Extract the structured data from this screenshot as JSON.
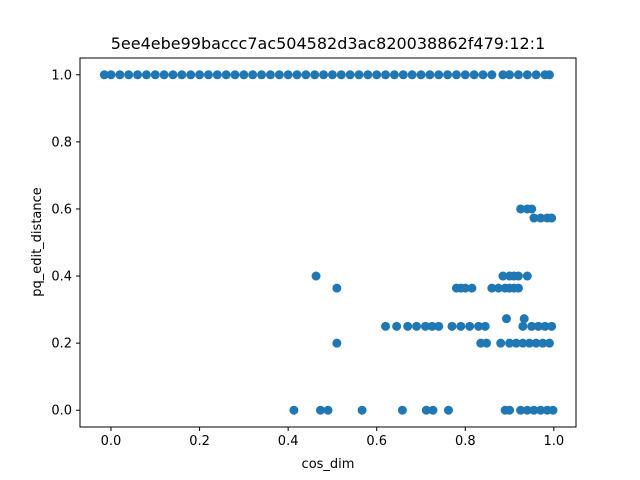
{
  "chart_data": {
    "type": "scatter",
    "title": "5ee4ebe99baccc7ac504582d3ac820038862f479:12:1",
    "xlabel": "cos_dim",
    "ylabel": "pq_edit_distance",
    "xlim": [
      -0.07,
      1.05
    ],
    "ylim": [
      -0.05,
      1.05
    ],
    "xticks": [
      0.0,
      0.2,
      0.4,
      0.6,
      0.8,
      1.0
    ],
    "xtick_labels": [
      "0.0",
      "0.2",
      "0.4",
      "0.6",
      "0.8",
      "1.0"
    ],
    "yticks": [
      0.0,
      0.2,
      0.4,
      0.6,
      0.8,
      1.0
    ],
    "ytick_labels": [
      "0.0",
      "0.2",
      "0.4",
      "0.6",
      "0.8",
      "1.0"
    ],
    "grid": false,
    "legend": "none",
    "marker_color": "#1f77b4",
    "series": [
      {
        "points": [
          [
            -0.015,
            1.0
          ],
          [
            0.0,
            1.0
          ],
          [
            0.02,
            1.0
          ],
          [
            0.04,
            1.0
          ],
          [
            0.06,
            1.0
          ],
          [
            0.08,
            1.0
          ],
          [
            0.1,
            1.0
          ],
          [
            0.12,
            1.0
          ],
          [
            0.14,
            1.0
          ],
          [
            0.16,
            1.0
          ],
          [
            0.18,
            1.0
          ],
          [
            0.2,
            1.0
          ],
          [
            0.22,
            1.0
          ],
          [
            0.24,
            1.0
          ],
          [
            0.26,
            1.0
          ],
          [
            0.28,
            1.0
          ],
          [
            0.3,
            1.0
          ],
          [
            0.32,
            1.0
          ],
          [
            0.34,
            1.0
          ],
          [
            0.36,
            1.0
          ],
          [
            0.38,
            1.0
          ],
          [
            0.4,
            1.0
          ],
          [
            0.42,
            1.0
          ],
          [
            0.44,
            1.0
          ],
          [
            0.46,
            1.0
          ],
          [
            0.48,
            1.0
          ],
          [
            0.5,
            1.0
          ],
          [
            0.52,
            1.0
          ],
          [
            0.54,
            1.0
          ],
          [
            0.56,
            1.0
          ],
          [
            0.58,
            1.0
          ],
          [
            0.6,
            1.0
          ],
          [
            0.62,
            1.0
          ],
          [
            0.64,
            1.0
          ],
          [
            0.66,
            1.0
          ],
          [
            0.68,
            1.0
          ],
          [
            0.7,
            1.0
          ],
          [
            0.72,
            1.0
          ],
          [
            0.74,
            1.0
          ],
          [
            0.76,
            1.0
          ],
          [
            0.78,
            1.0
          ],
          [
            0.8,
            1.0
          ],
          [
            0.82,
            1.0
          ],
          [
            0.84,
            1.0
          ],
          [
            0.86,
            1.0
          ],
          [
            0.885,
            1.0
          ],
          [
            0.9,
            1.0
          ],
          [
            0.92,
            1.0
          ],
          [
            0.94,
            1.0
          ],
          [
            0.96,
            1.0
          ],
          [
            0.98,
            1.0
          ],
          [
            0.99,
            1.0
          ],
          [
            0.925,
            0.6
          ],
          [
            0.94,
            0.6
          ],
          [
            0.95,
            0.6
          ],
          [
            0.955,
            0.573
          ],
          [
            0.97,
            0.573
          ],
          [
            0.985,
            0.573
          ],
          [
            0.995,
            0.573
          ],
          [
            0.463,
            0.4
          ],
          [
            0.885,
            0.4
          ],
          [
            0.9,
            0.4
          ],
          [
            0.91,
            0.4
          ],
          [
            0.92,
            0.4
          ],
          [
            0.94,
            0.4
          ],
          [
            0.51,
            0.364
          ],
          [
            0.78,
            0.364
          ],
          [
            0.79,
            0.364
          ],
          [
            0.8,
            0.364
          ],
          [
            0.815,
            0.364
          ],
          [
            0.86,
            0.364
          ],
          [
            0.875,
            0.364
          ],
          [
            0.89,
            0.364
          ],
          [
            0.9,
            0.364
          ],
          [
            0.91,
            0.364
          ],
          [
            0.92,
            0.364
          ],
          [
            0.893,
            0.273
          ],
          [
            0.933,
            0.273
          ],
          [
            0.62,
            0.25
          ],
          [
            0.645,
            0.25
          ],
          [
            0.67,
            0.25
          ],
          [
            0.69,
            0.25
          ],
          [
            0.71,
            0.25
          ],
          [
            0.725,
            0.25
          ],
          [
            0.74,
            0.25
          ],
          [
            0.77,
            0.25
          ],
          [
            0.79,
            0.25
          ],
          [
            0.81,
            0.25
          ],
          [
            0.83,
            0.25
          ],
          [
            0.845,
            0.25
          ],
          [
            0.93,
            0.25
          ],
          [
            0.95,
            0.25
          ],
          [
            0.965,
            0.25
          ],
          [
            0.98,
            0.25
          ],
          [
            0.995,
            0.25
          ],
          [
            0.51,
            0.2
          ],
          [
            0.835,
            0.2
          ],
          [
            0.848,
            0.2
          ],
          [
            0.88,
            0.2
          ],
          [
            0.9,
            0.2
          ],
          [
            0.915,
            0.2
          ],
          [
            0.93,
            0.2
          ],
          [
            0.945,
            0.2
          ],
          [
            0.96,
            0.2
          ],
          [
            0.975,
            0.2
          ],
          [
            0.99,
            0.2
          ],
          [
            0.413,
            0.0
          ],
          [
            0.473,
            0.0
          ],
          [
            0.49,
            0.0
          ],
          [
            0.567,
            0.0
          ],
          [
            0.658,
            0.0
          ],
          [
            0.712,
            0.0
          ],
          [
            0.727,
            0.0
          ],
          [
            0.762,
            0.0
          ],
          [
            0.89,
            0.0
          ],
          [
            0.9,
            0.0
          ],
          [
            0.925,
            0.0
          ],
          [
            0.94,
            0.0
          ],
          [
            0.955,
            0.0
          ],
          [
            0.97,
            0.0
          ],
          [
            0.985,
            0.0
          ],
          [
            0.998,
            0.0
          ]
        ]
      }
    ]
  }
}
